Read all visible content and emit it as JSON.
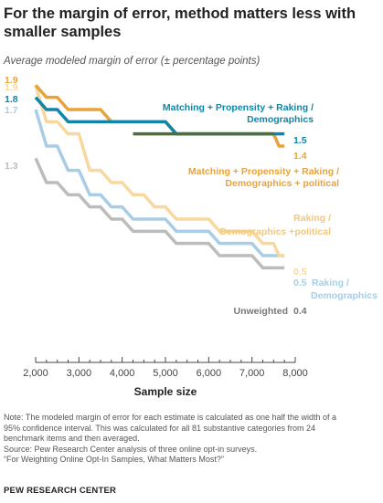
{
  "title": "For the margin of error, method matters less with smaller samples",
  "subtitle": "Average modeled margin of error (± percentage points)",
  "notes": [
    "Note: The modeled margin of error for each estimate is calculated as one half the width of a",
    "95% confidence interval. This was calculated for all 81 substantive categories from 24",
    "benchmark items and then averaged.",
    "Source: Pew Research Center analysis of three online opt-in surveys.",
    "“For Weighting Online Opt-In Samples, What Matters Most?”"
  ],
  "org": "PEW RESEARCH CENTER",
  "chart_data": {
    "type": "line",
    "xlabel": "Sample size",
    "ylabel": "",
    "xlim": [
      2000,
      8000
    ],
    "ylim": [
      0.2,
      2.0
    ],
    "xticks": [
      2000,
      3000,
      4000,
      5000,
      6000,
      7000,
      8000
    ],
    "xtick_labels": [
      "2,000",
      "3,000",
      "4,000",
      "5,000",
      "6,000",
      "7,000",
      "8,000"
    ],
    "x": [
      2000,
      2500,
      3000,
      3500,
      4000,
      4500,
      5000,
      5500,
      6000,
      6500,
      7000,
      7500,
      7750
    ],
    "series": [
      {
        "name": "Matching + Propensity + Raking / Demographics + political",
        "label_lines": [
          "Matching + Propensity + Raking /",
          "Demographics + political"
        ],
        "start_label": "1.9",
        "end_label": "1.4",
        "color": "#e8a33a",
        "values": [
          1.9,
          1.8,
          1.7,
          1.7,
          1.6,
          1.6,
          1.6,
          1.5,
          1.5,
          1.5,
          1.5,
          1.5,
          1.4
        ]
      },
      {
        "name": "Raking / Demographics +political",
        "label_lines": [
          "Raking /",
          "Demographics +political"
        ],
        "start_label": "1.9",
        "end_label": "0.5",
        "color": "#f7d89e",
        "values": [
          1.9,
          1.6,
          1.5,
          1.2,
          1.1,
          1.0,
          0.9,
          0.8,
          0.8,
          0.7,
          0.7,
          0.6,
          0.5
        ]
      },
      {
        "name": "Matching + Propensity + Raking / Demographics",
        "label_lines": [
          "Matching + Propensity + Raking /",
          "Demographics"
        ],
        "start_label": "1.8",
        "end_label": "1.5",
        "color": "#1186a8",
        "values": [
          1.8,
          1.7,
          1.6,
          1.6,
          1.6,
          1.6,
          1.6,
          1.5,
          1.5,
          1.5,
          1.5,
          1.5,
          1.5
        ]
      },
      {
        "name": "Raking / Demographics",
        "label_lines": [
          "Raking /",
          "Demographics"
        ],
        "start_label": "1.7",
        "end_label": "0.5",
        "color": "#a9cde4",
        "values": [
          1.7,
          1.4,
          1.2,
          1.0,
          0.9,
          0.8,
          0.8,
          0.7,
          0.7,
          0.6,
          0.6,
          0.5,
          0.5
        ]
      },
      {
        "name": "Unweighted",
        "label_lines": [
          "Unweighted"
        ],
        "start_label": "1.3",
        "end_label": "0.4",
        "color": "#bcbcbc",
        "values": [
          1.3,
          1.1,
          1.0,
          0.9,
          0.8,
          0.7,
          0.7,
          0.6,
          0.6,
          0.5,
          0.5,
          0.4,
          0.4
        ]
      }
    ],
    "overlap_color": "#4e6e3e",
    "grid": false,
    "legend": "direct labels"
  }
}
